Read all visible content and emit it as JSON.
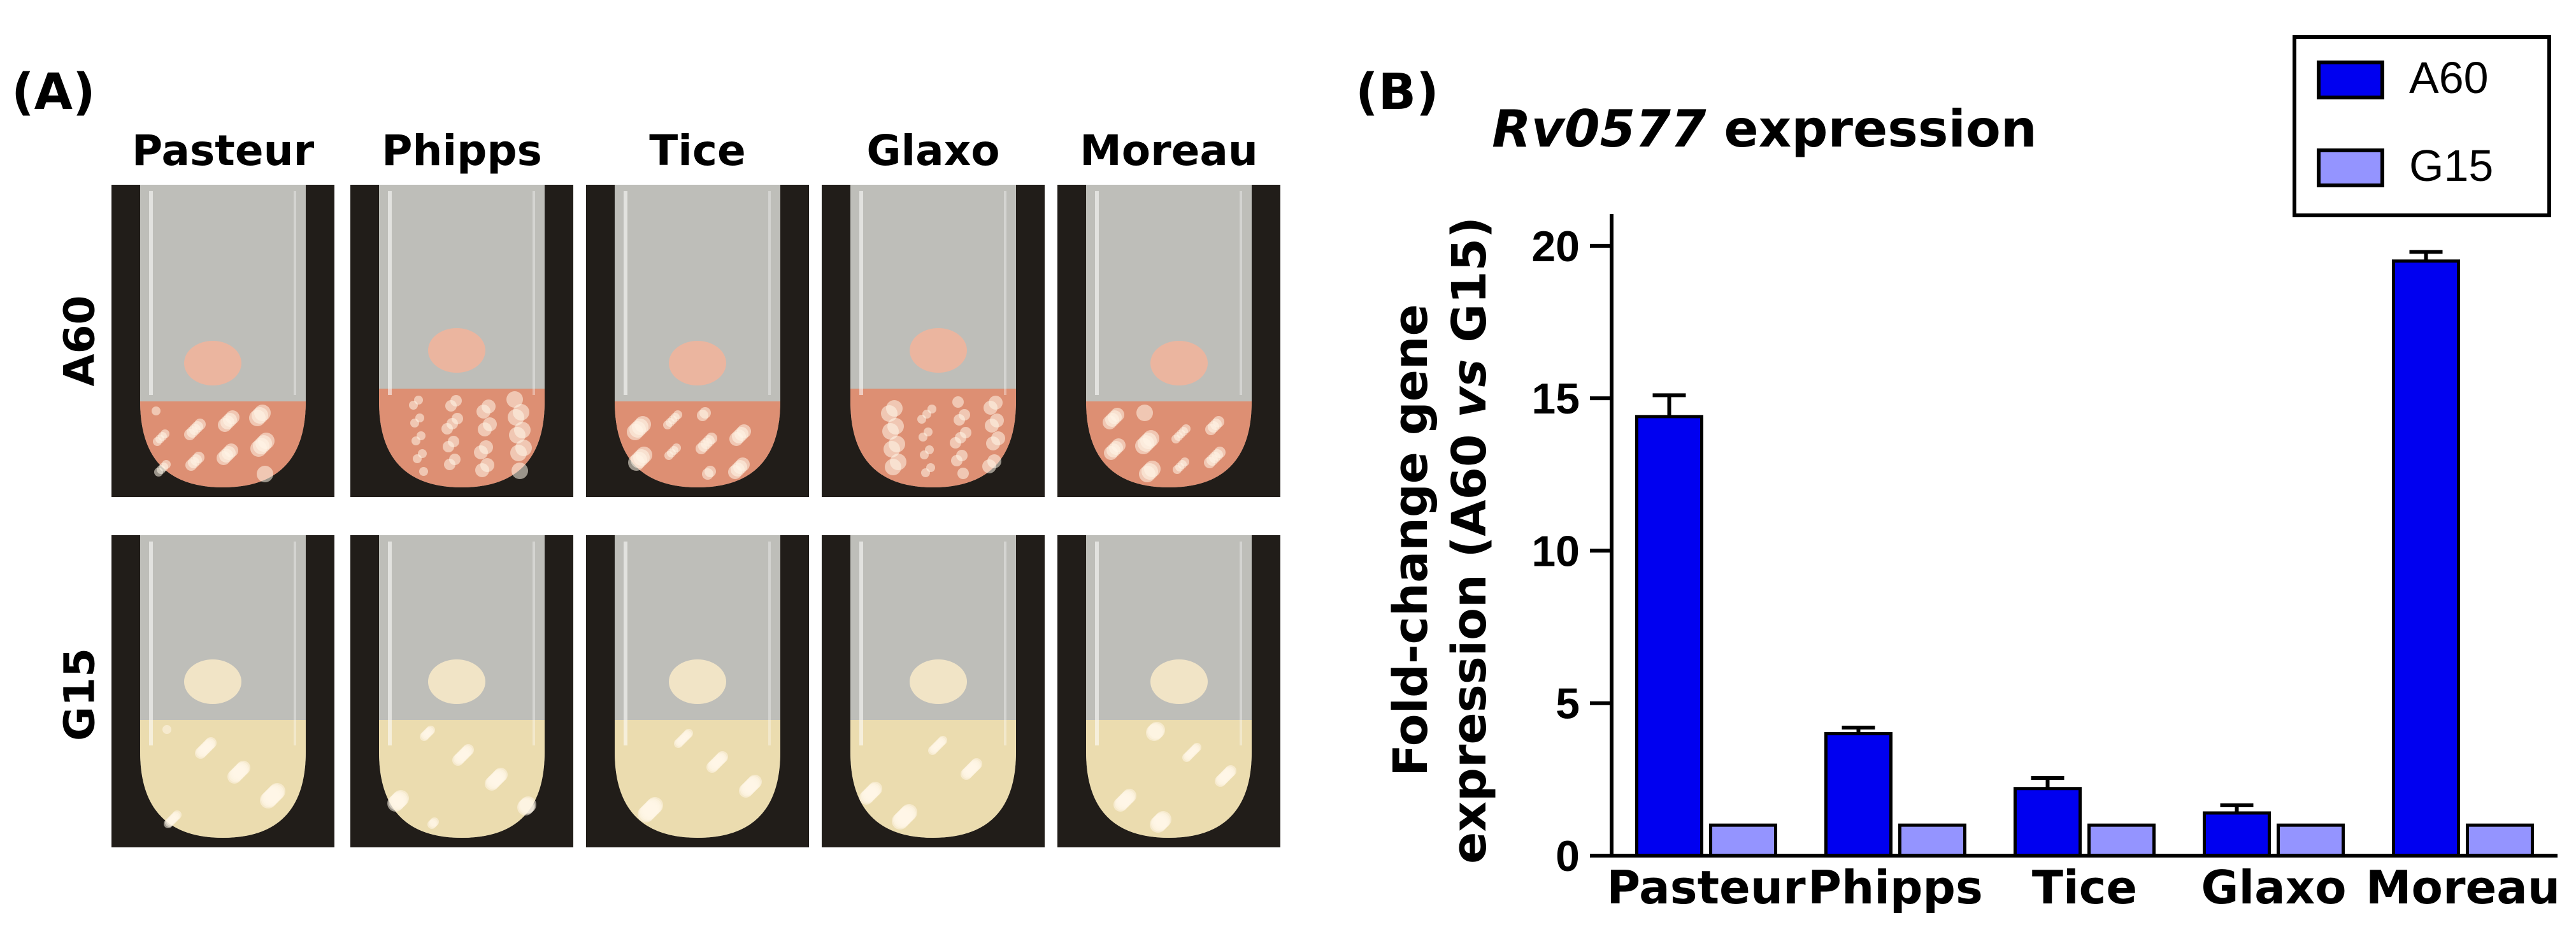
{
  "panel_a": {
    "label": "(A)",
    "columns": [
      "Pasteur",
      "Phipps",
      "Tice",
      "Glaxo",
      "Moreau"
    ],
    "rows": [
      "A60",
      "G15"
    ]
  },
  "panel_b": {
    "label": "(B)"
  },
  "colors": {
    "A60": "#0000f0",
    "G15": "#9494ff",
    "axis": "#000000",
    "a60_media": "#e08a6c",
    "g15_media": "#efdfae"
  },
  "chart_data": {
    "type": "bar",
    "title_italic": "Rv0577",
    "title_rest": " expression",
    "ylabel_line1": "Fold-change gene",
    "ylabel_line2_pre": "expression (A60 ",
    "ylabel_line2_italic": "vs",
    "ylabel_line2_post": " G15)",
    "xlabel": "",
    "categories": [
      "Pasteur",
      "Phipps",
      "Tice",
      "Glaxo",
      "Moreau"
    ],
    "series": [
      {
        "name": "A60",
        "values": [
          14.4,
          4.0,
          2.2,
          1.4,
          19.5
        ],
        "errors": [
          0.7,
          0.2,
          0.35,
          0.25,
          0.3
        ]
      },
      {
        "name": "G15",
        "values": [
          1.0,
          1.0,
          1.0,
          1.0,
          1.0
        ],
        "errors": [
          0,
          0,
          0,
          0,
          0
        ]
      }
    ],
    "ylim": [
      0,
      21
    ],
    "yticks": [
      0,
      5,
      10,
      15,
      20
    ],
    "legend_position": "top-right"
  }
}
